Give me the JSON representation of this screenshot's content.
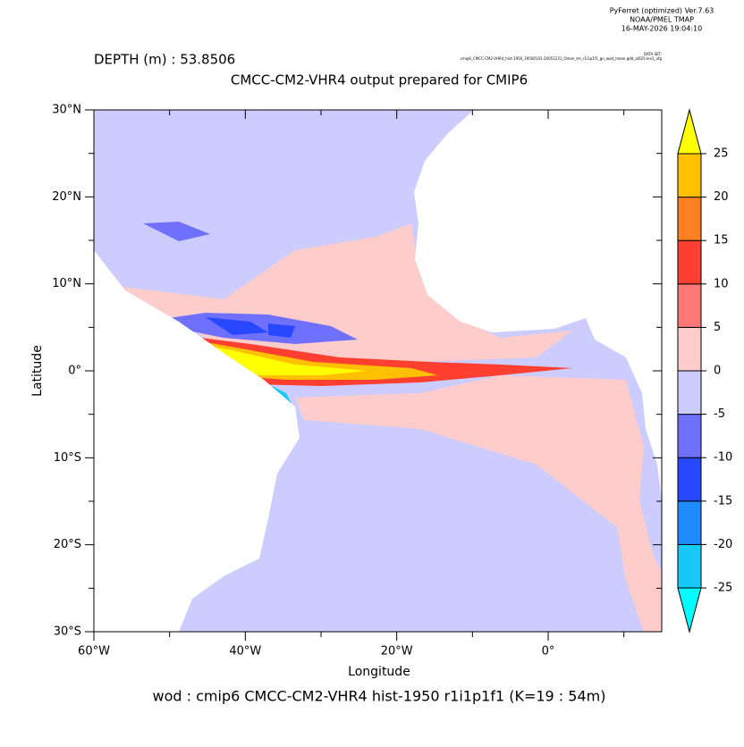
{
  "header": {
    "program": "PyFerret (optimized) Ver.7.63",
    "institution": "NOAA/PMEL TMAP",
    "timestamp": "16-MAY-2026 19:04:10",
    "dataset_label": "DATA SET:",
    "dataset": "cmip6_CMCC-CM2-VHR4_hist-1950_19500101-20051231_Omon_tm_r1i1p1f1_gn_wod_mean.gdd_aI025-lev1_ufg"
  },
  "chart_data": {
    "type": "contourf",
    "depth_label": "DEPTH (m) : 53.8506",
    "title": "CMCC-CM2-VHR4 output prepared for CMIP6",
    "x_label": "Longitude",
    "y_label": "Latitude",
    "footer": "wod : cmip6 CMCC-CM2-VHR4 hist-1950 r1i1p1f1   (K=19 : 54m)",
    "xlim": [
      -60,
      15
    ],
    "ylim": [
      -30,
      30
    ],
    "xticks": [
      {
        "value": -60,
        "label": "60°W"
      },
      {
        "value": -40,
        "label": "40°W"
      },
      {
        "value": -20,
        "label": "20°W"
      },
      {
        "value": 0,
        "label": "0°"
      }
    ],
    "xminor": [
      -50,
      -30,
      -10,
      10
    ],
    "yticks": [
      {
        "value": -30,
        "label": "30°S"
      },
      {
        "value": -20,
        "label": "20°S"
      },
      {
        "value": -10,
        "label": "10°S"
      },
      {
        "value": 0,
        "label": "0°"
      },
      {
        "value": 10,
        "label": "10°N"
      },
      {
        "value": 20,
        "label": "20°N"
      },
      {
        "value": 30,
        "label": "30°N"
      }
    ],
    "yminor": [
      -25,
      -15,
      -5,
      5,
      15,
      25
    ],
    "levels": [
      -25,
      -20,
      -15,
      -10,
      -5,
      0,
      5,
      10,
      15,
      20,
      25
    ],
    "colors": [
      "#00ffff",
      "#18c8f8",
      "#1e8cff",
      "#2848ff",
      "#7070ff",
      "#ccccff",
      "#ffcccc",
      "#ff7878",
      "#ff4030",
      "#ff8020",
      "#ffc000",
      "#ffff00"
    ]
  }
}
